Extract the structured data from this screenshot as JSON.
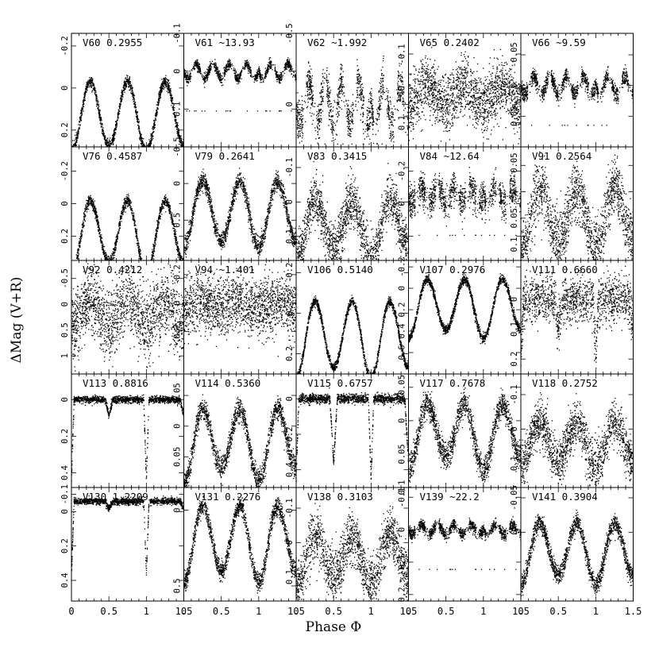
{
  "figure": {
    "xlabel": "Phase Φ",
    "ylabel": "ΔMag (V+R)"
  },
  "chart_data": {
    "type": "scatter",
    "rows": 5,
    "cols": 5,
    "x_ticks": [
      "0",
      "0.5",
      "1",
      "1.5"
    ],
    "xlim": [
      0,
      1.5
    ],
    "y_inverted": true,
    "panels": [
      {
        "name": "V60",
        "period": "0.2955",
        "ylim": [
          0.28,
          -0.26
        ],
        "yticks": [
          "-0.2",
          "0",
          "0.2"
        ],
        "shape": "ew",
        "amp": 0.33,
        "depths": [
          1,
          0.92
        ],
        "noise": 0.05,
        "base": 0.02
      },
      {
        "name": "V61",
        "period": "~13.93",
        "ylim": [
          0.2,
          -0.1
        ],
        "yticks": [
          "-0.1",
          "0",
          "0.1"
        ],
        "shape": "irregular",
        "amp": 0.04,
        "depths": [
          1,
          1
        ],
        "noise": 0.06,
        "base": 0
      },
      {
        "name": "V62",
        "period": "~1.992",
        "ylim": [
          0.3,
          -0.5
        ],
        "yticks": [
          "-0.5",
          "0"
        ],
        "shape": "irregular",
        "amp": 0.3,
        "depths": [
          1,
          1
        ],
        "noise": 0.25,
        "base": 0
      },
      {
        "name": "V65",
        "period": "0.2402",
        "ylim": [
          0.17,
          -0.16
        ],
        "yticks": [
          "-0.1",
          "0",
          "0.1"
        ],
        "shape": "noisy",
        "amp": 0.06,
        "depths": [
          1,
          1
        ],
        "noise": 0.25,
        "base": 0
      },
      {
        "name": "V66",
        "period": "~9.59",
        "ylim": [
          0.1,
          -0.085
        ],
        "yticks": [
          "-0.05",
          "0",
          "0.05"
        ],
        "shape": "irregular",
        "amp": 0.03,
        "depths": [
          1,
          1
        ],
        "noise": 0.1,
        "base": 0
      },
      {
        "name": "V76",
        "period": "0.4587",
        "ylim": [
          0.35,
          -0.35
        ],
        "yticks": [
          "-0.2",
          "0",
          "0.2"
        ],
        "shape": "ew",
        "amp": 0.45,
        "depths": [
          1,
          0.85
        ],
        "noise": 0.05,
        "base": 0.05
      },
      {
        "name": "V79",
        "period": "0.2641",
        "ylim": [
          1.05,
          -0.5
        ],
        "yticks": [
          "-0.5",
          "0",
          "0.5"
        ],
        "shape": "ew",
        "amp": 0.9,
        "depths": [
          1,
          0.9
        ],
        "noise": 0.08,
        "base": 0.1
      },
      {
        "name": "V83",
        "period": "0.3415",
        "ylim": [
          0.17,
          -0.16
        ],
        "yticks": [
          "-0.1",
          "0",
          "0.1"
        ],
        "shape": "ew",
        "amp": 0.17,
        "depths": [
          1,
          0.8
        ],
        "noise": 0.22,
        "base": 0.02
      },
      {
        "name": "V84",
        "period": "~12.64",
        "ylim": [
          0.35,
          -0.35
        ],
        "yticks": [
          "-0.2",
          "0",
          "0.2"
        ],
        "shape": "irregular",
        "amp": 0.1,
        "depths": [
          1,
          1
        ],
        "noise": 0.2,
        "base": -0.05
      },
      {
        "name": "V91",
        "period": "0.2564",
        "ylim": [
          0.13,
          -0.085
        ],
        "yticks": [
          "-0.05",
          "0",
          "0.05",
          "0.1"
        ],
        "shape": "ew",
        "amp": 0.12,
        "depths": [
          1,
          0.85
        ],
        "noise": 0.25,
        "base": 0.01
      },
      {
        "name": "V92",
        "period": "0.4212",
        "ylim": [
          1.35,
          -0.85
        ],
        "yticks": [
          "-0.5",
          "0",
          "0.5",
          "1"
        ],
        "shape": "noisy",
        "amp": 0.5,
        "depths": [
          1,
          1
        ],
        "noise": 0.3,
        "base": 0
      },
      {
        "name": "V94",
        "period": "~1.401",
        "ylim": [
          0.5,
          -0.3
        ],
        "yticks": [
          "-0.2",
          "0",
          "0.2"
        ],
        "shape": "noisy",
        "amp": 0.05,
        "depths": [
          1,
          1
        ],
        "noise": 0.25,
        "base": 0
      },
      {
        "name": "V106",
        "period": "0.5140",
        "ylim": [
          0.3,
          -0.26
        ],
        "yticks": [
          "-0.2",
          "0",
          "0.2"
        ],
        "shape": "ew",
        "amp": 0.38,
        "depths": [
          1,
          0.85
        ],
        "noise": 0.04,
        "base": 0.0
      },
      {
        "name": "V107",
        "period": "0.2976",
        "ylim": [
          0.8,
          -0.26
        ],
        "yticks": [
          "-0.2",
          "0",
          "0.2",
          "0.4",
          "0.6"
        ],
        "shape": "ew",
        "amp": 0.55,
        "depths": [
          1,
          0.85
        ],
        "noise": 0.04,
        "base": 0.0
      },
      {
        "name": "V111",
        "period": "0.6660",
        "ylim": [
          0.25,
          -0.13
        ],
        "yticks": [
          "0",
          "0.1",
          "0.2"
        ],
        "shape": "algol",
        "amp": 0.2,
        "depths": [
          1,
          0.5
        ],
        "noise": 0.2,
        "base": 0.0
      },
      {
        "name": "V113",
        "period": "0.8816",
        "ylim": [
          0.48,
          -0.14
        ],
        "yticks": [
          "0",
          "0.2",
          "0.4"
        ],
        "shape": "algol",
        "amp": 0.44,
        "depths": [
          1,
          0.2
        ],
        "noise": 0.03,
        "base": 0.0
      },
      {
        "name": "V114",
        "period": "0.5360",
        "ylim": [
          0.1,
          -0.085
        ],
        "yticks": [
          "-0.05",
          "0",
          "0.05"
        ],
        "shape": "ew",
        "amp": 0.12,
        "depths": [
          1,
          0.8
        ],
        "noise": 0.1,
        "base": -0.01
      },
      {
        "name": "V115",
        "period": "0.6757",
        "ylim": [
          0.5,
          -0.14
        ],
        "yticks": [
          "-0.2",
          "0",
          "0.2",
          "0.4"
        ],
        "shape": "algol",
        "amp": 0.45,
        "depths": [
          1,
          0.8
        ],
        "noise": 0.04,
        "base": 0.0
      },
      {
        "name": "V117",
        "period": "0.7678",
        "ylim": [
          0.1,
          -0.07
        ],
        "yticks": [
          "-0.05",
          "0",
          "0.05",
          "0.1"
        ],
        "shape": "ew",
        "amp": 0.1,
        "depths": [
          1,
          0.8
        ],
        "noise": 0.12,
        "base": -0.01
      },
      {
        "name": "V118",
        "period": "0.2752",
        "ylim": [
          0.17,
          -0.16
        ],
        "yticks": [
          "-0.1",
          "0",
          "0.1"
        ],
        "shape": "ew",
        "amp": 0.13,
        "depths": [
          1,
          0.85
        ],
        "noise": 0.2,
        "base": 0.0
      },
      {
        "name": "V130",
        "period": "1.2209",
        "ylim": [
          0.52,
          -0.14
        ],
        "yticks": [
          "-0.1",
          "0",
          "0.2",
          "0.4"
        ],
        "shape": "algol",
        "amp": 0.42,
        "depths": [
          1,
          0.1
        ],
        "noise": 0.03,
        "base": -0.06
      },
      {
        "name": "V131",
        "period": "0.2276",
        "ylim": [
          0.6,
          -0.15
        ],
        "yticks": [
          "0",
          "0.5"
        ],
        "shape": "ew",
        "amp": 0.5,
        "depths": [
          1,
          0.85
        ],
        "noise": 0.08,
        "base": 0.05
      },
      {
        "name": "V138",
        "period": "0.3103",
        "ylim": [
          0.17,
          -0.16
        ],
        "yticks": [
          "-0.1",
          "0",
          "0.1"
        ],
        "shape": "ew",
        "amp": 0.15,
        "depths": [
          1,
          0.8
        ],
        "noise": 0.22,
        "base": 0.0
      },
      {
        "name": "V139",
        "period": "~22.2",
        "ylim": [
          0.22,
          -0.13
        ],
        "yticks": [
          "-0.1",
          "0",
          "0.1",
          "0.2"
        ],
        "shape": "irregular",
        "amp": 0.03,
        "depths": [
          1,
          1
        ],
        "noise": 0.07,
        "base": 0.0
      },
      {
        "name": "V141",
        "period": "0.3904",
        "ylim": [
          0.1,
          -0.065
        ],
        "yticks": [
          "-0.05",
          "0"
        ],
        "shape": "ew",
        "amp": 0.09,
        "depths": [
          1,
          0.85
        ],
        "noise": 0.08,
        "base": 0.0
      }
    ]
  }
}
